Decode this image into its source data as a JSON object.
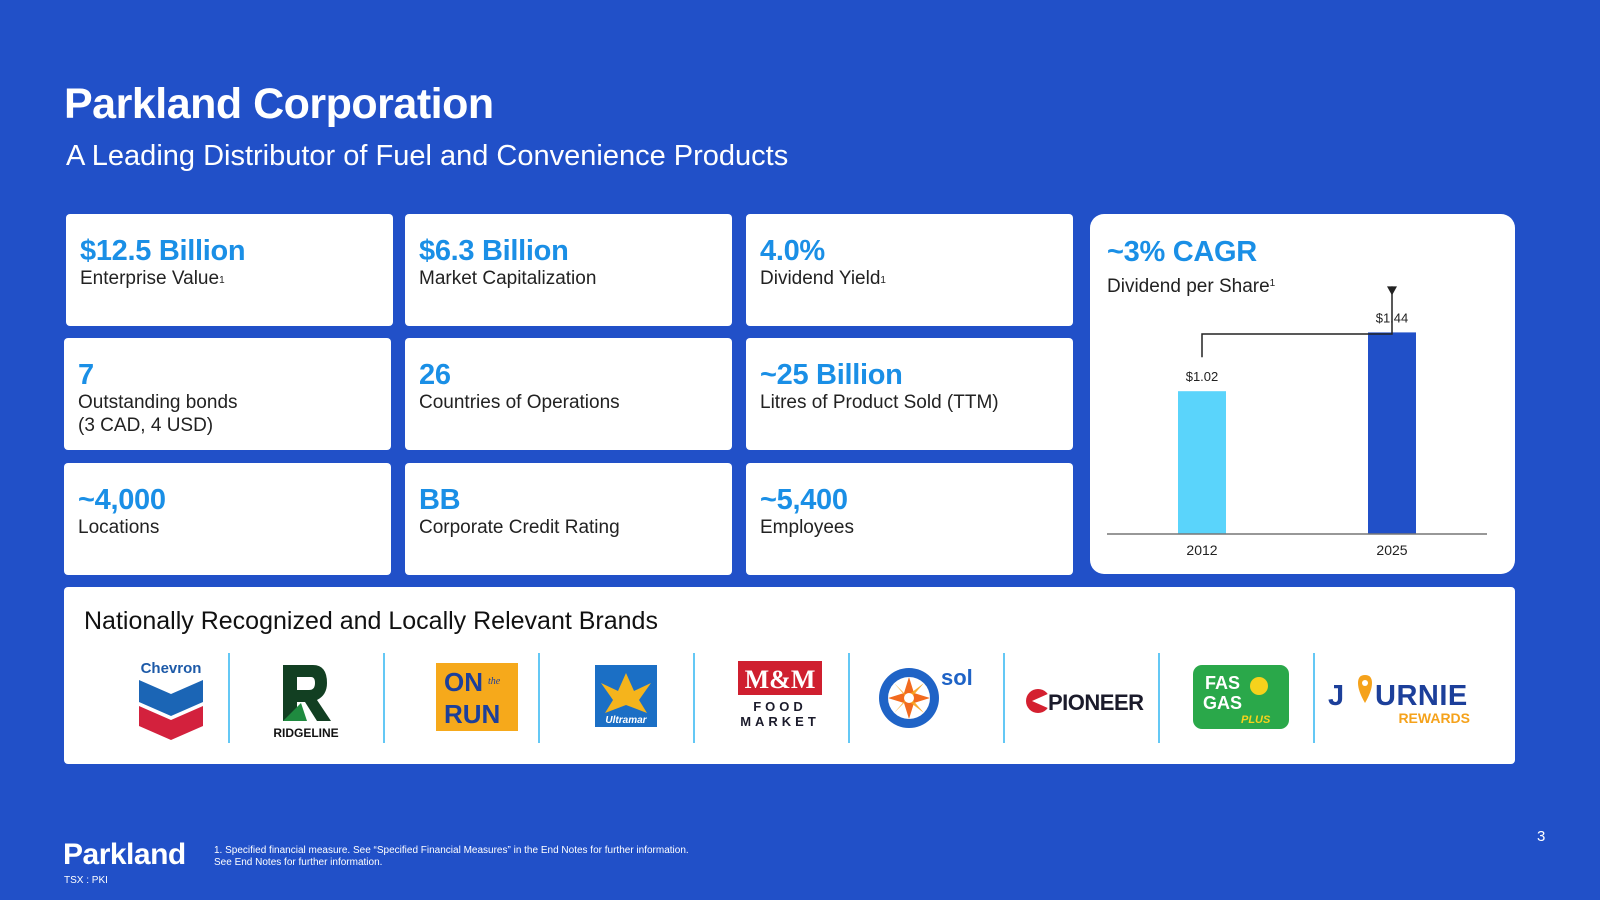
{
  "header": {
    "title": "Parkland Corporation",
    "subtitle": "A Leading Distributor of Fuel and Convenience Products"
  },
  "stats": [
    {
      "value": "$12.5 Billion",
      "label": "Enterprise Value",
      "sup": "1"
    },
    {
      "value": "$6.3 Billion",
      "label": "Market Capitalization",
      "sup": ""
    },
    {
      "value": "4.0%",
      "label": "Dividend Yield",
      "sup": "1"
    },
    {
      "value": "7",
      "label": "Outstanding bonds",
      "label2": "(3 CAD, 4 USD)",
      "sup": ""
    },
    {
      "value": "26",
      "label": "Countries of Operations",
      "sup": ""
    },
    {
      "value": "~25 Billion",
      "label": "Litres of Product Sold (TTM)",
      "sup": ""
    },
    {
      "value": "~4,000",
      "label": "Locations",
      "sup": ""
    },
    {
      "value": "BB",
      "label": "Corporate Credit Rating",
      "sup": ""
    },
    {
      "value": "~5,400",
      "label": "Employees",
      "sup": ""
    }
  ],
  "chart_card": {
    "value": "~3% CAGR",
    "label": "Dividend per Share",
    "sup": "1"
  },
  "chart_data": {
    "type": "bar",
    "categories": [
      "2012",
      "2025"
    ],
    "values": [
      1.02,
      1.44
    ],
    "value_labels": [
      "$1.02",
      "$1.44"
    ],
    "title": "",
    "xlabel": "",
    "ylabel": "",
    "ylim": [
      0,
      1.5
    ],
    "colors": [
      "#5ad4fb",
      "#2150c8"
    ],
    "grid": false,
    "legend": "none"
  },
  "brands": {
    "title": "Nationally Recognized and Locally Relevant Brands",
    "logos": [
      {
        "name": "chevron-logo",
        "text": "Chevron"
      },
      {
        "name": "ridgeline-logo",
        "text": "RIDGELINE"
      },
      {
        "name": "on-the-run-logo",
        "text": "ON the RUN"
      },
      {
        "name": "ultramar-logo",
        "text": "Ultramar"
      },
      {
        "name": "mm-food-market-logo",
        "text": "M&M FOOD MARKET"
      },
      {
        "name": "sol-logo",
        "text": "sol"
      },
      {
        "name": "pioneer-logo",
        "text": "PIONEER"
      },
      {
        "name": "fas-gas-plus-logo",
        "text": "FAS GAS PLUS"
      },
      {
        "name": "journie-rewards-logo",
        "text": "JOURNIE REWARDS"
      }
    ]
  },
  "footer": {
    "logo": "Parkland",
    "ticker": "TSX : PKI",
    "footnote1": "1. Specified financial measure. See “Specified Financial Measures” in the End Notes for further information.",
    "footnote2": "See End Notes for further information.",
    "page": "3"
  },
  "colors": {
    "background": "#2150c8",
    "accent": "#1a8fe6",
    "light_bar": "#5ad4fb",
    "divider": "#64c8f5"
  }
}
